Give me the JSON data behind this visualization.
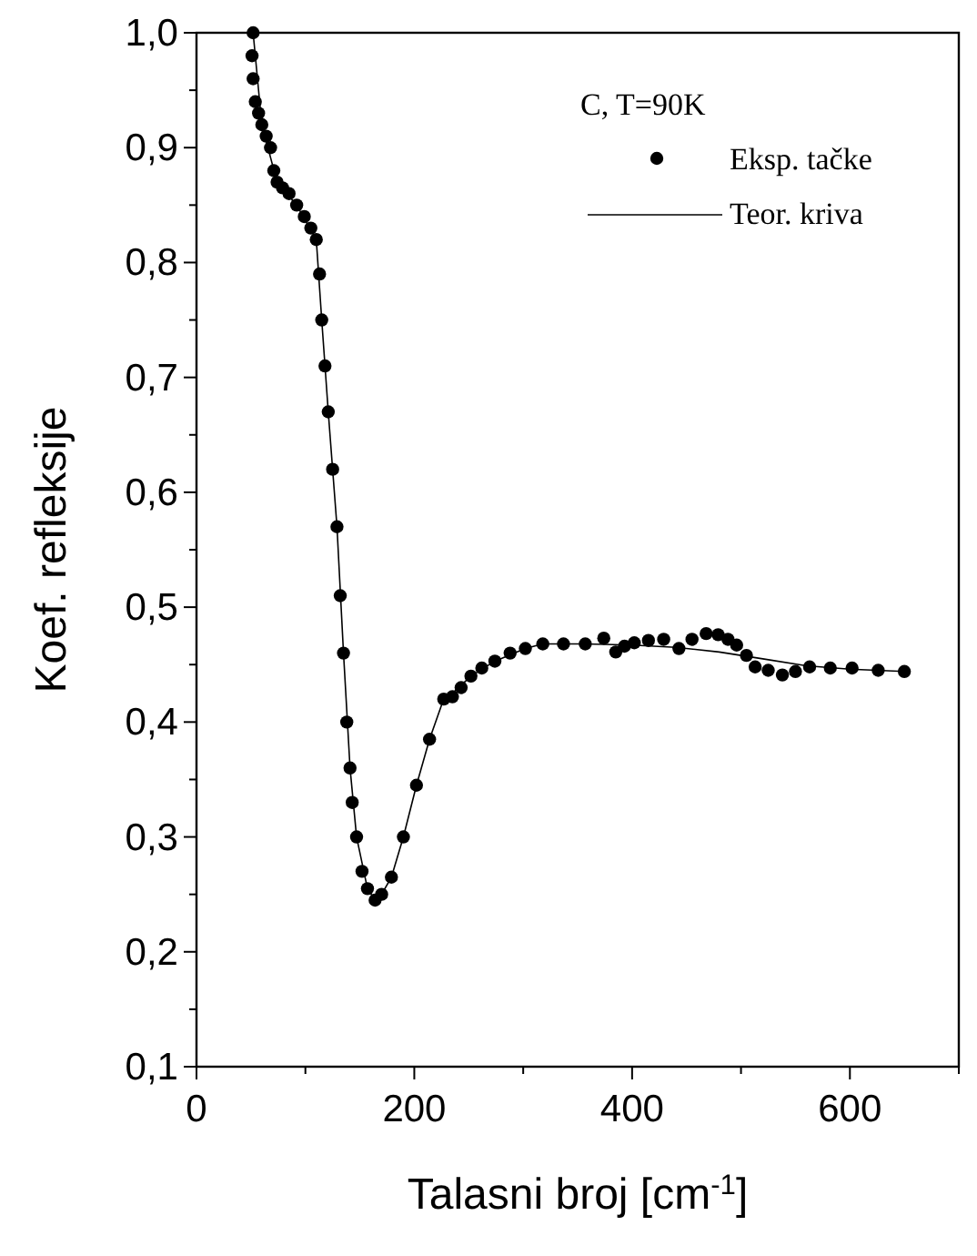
{
  "chart_data": {
    "type": "scatter",
    "xlabel": "Talasni broj [cm$^{-1}$]",
    "ylabel": "Koef. refleksije",
    "legend_title": "C, T=90K",
    "legend": "top right",
    "xlim": [
      0,
      700
    ],
    "ylim": [
      0.1,
      1.0
    ],
    "xticks": [
      0,
      {
        "value": 100,
        "label": null
      },
      200,
      {
        "value": 300,
        "label": null
      },
      400,
      {
        "value": 500,
        "label": null
      },
      600,
      {
        "value": 700,
        "label": null
      }
    ],
    "yticks": [
      {
        "value": 0.1,
        "label": "0,1"
      },
      {
        "value": 0.15,
        "label": null
      },
      {
        "value": 0.2,
        "label": "0,2"
      },
      {
        "value": 0.25,
        "label": null
      },
      {
        "value": 0.3,
        "label": "0,3"
      },
      {
        "value": 0.35,
        "label": null
      },
      {
        "value": 0.4,
        "label": "0,4"
      },
      {
        "value": 0.45,
        "label": null
      },
      {
        "value": 0.5,
        "label": "0,5"
      },
      {
        "value": 0.55,
        "label": null
      },
      {
        "value": 0.6,
        "label": "0,6"
      },
      {
        "value": 0.65,
        "label": null
      },
      {
        "value": 0.7,
        "label": "0,7"
      },
      {
        "value": 0.75,
        "label": null
      },
      {
        "value": 0.8,
        "label": "0,8"
      },
      {
        "value": 0.85,
        "label": null
      },
      {
        "value": 0.9,
        "label": "0,9"
      },
      {
        "value": 0.95,
        "label": null
      },
      {
        "value": 1.0,
        "label": "1,0"
      }
    ],
    "series": [
      {
        "name": "Eksp. tačke",
        "marker": "circle",
        "color": "#000000",
        "x": [
          52,
          51,
          52,
          54,
          57,
          60,
          64,
          68,
          71,
          74,
          79,
          85,
          92,
          99,
          105,
          110,
          113,
          115,
          118,
          121,
          125,
          129,
          132,
          135,
          138,
          141,
          143,
          147,
          152,
          157,
          164,
          170,
          179,
          190,
          202,
          214,
          227,
          235,
          243,
          252,
          262,
          274,
          288,
          302,
          318,
          337,
          357,
          374,
          385,
          393,
          402,
          415,
          429,
          443,
          455,
          468,
          479,
          488,
          496,
          505,
          513,
          525,
          538,
          550,
          563,
          582,
          602,
          626,
          650
        ],
        "values": [
          1.0,
          0.98,
          0.96,
          0.94,
          0.93,
          0.92,
          0.91,
          0.9,
          0.88,
          0.87,
          0.865,
          0.86,
          0.85,
          0.84,
          0.83,
          0.82,
          0.79,
          0.75,
          0.71,
          0.67,
          0.62,
          0.57,
          0.51,
          0.46,
          0.4,
          0.36,
          0.33,
          0.3,
          0.27,
          0.255,
          0.245,
          0.25,
          0.265,
          0.3,
          0.345,
          0.385,
          0.42,
          0.422,
          0.43,
          0.44,
          0.447,
          0.453,
          0.46,
          0.464,
          0.468,
          0.468,
          0.468,
          0.473,
          0.461,
          0.466,
          0.469,
          0.471,
          0.472,
          0.464,
          0.472,
          0.477,
          0.476,
          0.472,
          0.467,
          0.458,
          0.448,
          0.445,
          0.441,
          0.444,
          0.448,
          0.447,
          0.447,
          0.445,
          0.444
        ]
      },
      {
        "name": "Teor. kriva",
        "type": "line",
        "color": "#000000",
        "x": [
          52,
          60,
          74,
          92,
          110,
          115,
          121,
          129,
          135,
          141,
          147,
          157,
          164,
          170,
          179,
          190,
          202,
          214,
          227,
          235,
          252,
          274,
          302,
          318,
          357,
          400,
          440,
          480,
          520,
          560,
          600,
          650
        ],
        "values": [
          1.0,
          0.92,
          0.87,
          0.85,
          0.82,
          0.75,
          0.67,
          0.57,
          0.46,
          0.36,
          0.3,
          0.255,
          0.245,
          0.25,
          0.265,
          0.3,
          0.345,
          0.385,
          0.42,
          0.425,
          0.44,
          0.453,
          0.464,
          0.468,
          0.468,
          0.467,
          0.465,
          0.461,
          0.455,
          0.449,
          0.446,
          0.444
        ]
      }
    ]
  }
}
